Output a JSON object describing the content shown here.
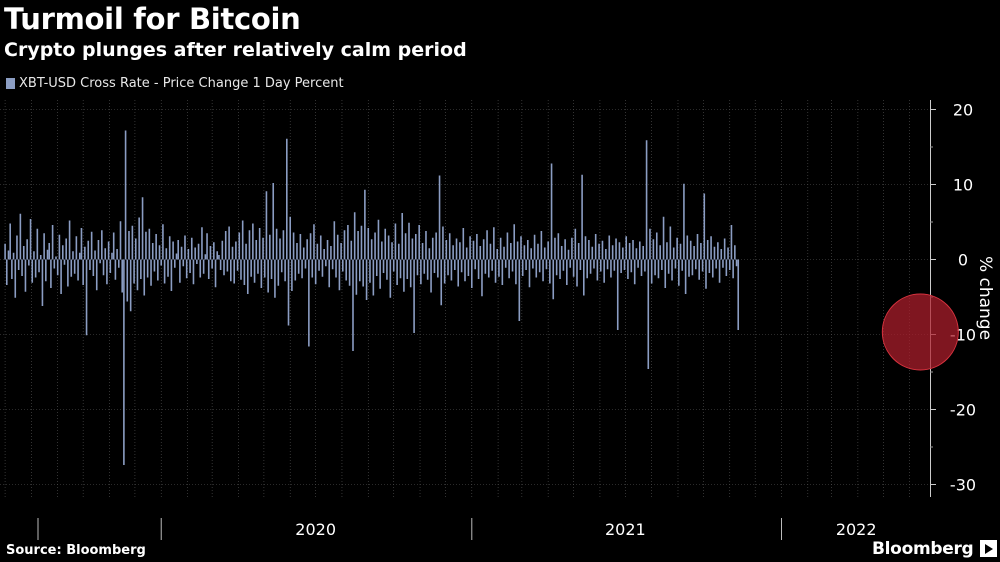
{
  "header": {
    "title": "Turmoil for Bitcoin",
    "subtitle": "Crypto plunges after relatively calm period"
  },
  "footer": {
    "source": "Source: Bloomberg",
    "brand": "Bloomberg"
  },
  "colors": {
    "background": "#000000",
    "bars": "#8b9dc3",
    "grid": "#555555",
    "highlight": "#b01e2c"
  },
  "chart_data": {
    "type": "bar",
    "title": "Turmoil for Bitcoin",
    "subtitle": "Crypto plunges after relatively calm period",
    "series": [
      {
        "name": "XBT-USD Cross Rate - Price Change 1 Day Percent",
        "description_of_sampling": "daily percent changes, 2019-07-01 to 2022-06-13, sampled every 2 days",
        "x_start": "2019-07-01",
        "x_step_days": 2,
        "values": [
          2.1,
          -3.4,
          1.2,
          4.8,
          -2.6,
          0.9,
          -5.1,
          3.2,
          -1.4,
          6.1,
          -2.2,
          1.8,
          -4.3,
          2.7,
          -0.8,
          5.4,
          -3.1,
          1.1,
          -2.4,
          4.1,
          -1.7,
          0.6,
          -6.2,
          3.5,
          -2.9,
          1.3,
          2.2,
          -3.8,
          4.6,
          -1.2,
          0.4,
          -2.1,
          3.3,
          -4.6,
          1.9,
          -0.7,
          2.8,
          -3.6,
          5.2,
          -2.3,
          1.1,
          -1.9,
          3.1,
          -2.8,
          0.9,
          4.2,
          -3.4,
          1.7,
          -10.1,
          2.5,
          -1.4,
          3.7,
          -2.2,
          1.2,
          -4.1,
          2.6,
          -0.5,
          3.9,
          -2.1,
          1.5,
          -3.3,
          2.4,
          -1.8,
          0.9,
          3.6,
          -2.7,
          1.4,
          -1.1,
          5.1,
          -4.4,
          -27.4,
          17.2,
          -5.6,
          3.8,
          -6.9,
          4.5,
          -3.2,
          2.8,
          -4.1,
          5.6,
          -2.6,
          8.3,
          -4.8,
          3.7,
          -2.4,
          4.1,
          -3.5,
          2.2,
          -1.6,
          3.4,
          -2.8,
          1.9,
          -0.8,
          4.7,
          -3.2,
          1.5,
          -2.3,
          3.1,
          -4.2,
          2.4,
          -1.1,
          0.8,
          2.6,
          -3.1,
          1.7,
          -0.9,
          3.2,
          -2.5,
          1.4,
          -1.8,
          2.9,
          -3.3,
          1.6,
          -0.6,
          2.1,
          -2.4,
          4.3,
          -1.9,
          0.7,
          3.5,
          -2.6,
          1.8,
          -1.2,
          2.3,
          -3.7,
          1.1,
          0.6,
          -1.4,
          2.5,
          -2.1,
          3.8,
          -1.6,
          4.4,
          -2.9,
          1.7,
          -3.2,
          2.4,
          -1.5,
          3.6,
          -2.7,
          5.2,
          -3.4,
          2.1,
          -4.6,
          3.9,
          -2.3,
          4.8,
          -3.1,
          2.6,
          -1.9,
          4.2,
          -3.8,
          2.9,
          -2.4,
          9.1,
          -4.4,
          3.3,
          -2.6,
          10.2,
          -5.1,
          4.1,
          -3.5,
          2.8,
          -1.7,
          3.9,
          -2.9,
          16.1,
          -8.8,
          5.7,
          -4.2,
          3.6,
          -2.8,
          2.2,
          -1.9,
          3.4,
          -2.5,
          1.6,
          -1.2,
          2.7,
          -11.6,
          3.5,
          -2.4,
          4.7,
          -3.3,
          2.1,
          -1.5,
          3.2,
          -2.3,
          1.4,
          -0.9,
          2.6,
          -3.7,
          1.8,
          -1.3,
          5.1,
          -2.4,
          3.3,
          -4.1,
          2.2,
          -1.6,
          3.9,
          -2.8,
          4.6,
          -3.5,
          2.5,
          -12.2,
          6.3,
          -4.7,
          3.8,
          -2.9,
          4.5,
          -3.6,
          9.3,
          -5.4,
          4.2,
          -3.1,
          2.7,
          -4.8,
          3.6,
          -2.2,
          5.3,
          -3.9,
          2.4,
          -1.8,
          4.1,
          -2.7,
          3.2,
          -5.1,
          2.3,
          -1.6,
          4.8,
          -3.4,
          2.1,
          -2.5,
          6.2,
          -4.3,
          3.5,
          -2.6,
          4.9,
          -3.7,
          2.8,
          -9.8,
          3.4,
          -2.1,
          4.6,
          -3.3,
          2.2,
          -1.9,
          3.8,
          -2.7,
          1.5,
          -4.4,
          2.9,
          -1.8,
          3.6,
          -2.4,
          11.2,
          -6.1,
          4.4,
          -3.2,
          2.6,
          -2.1,
          3.5,
          -2.8,
          1.9,
          -1.4,
          2.8,
          -3.6,
          2.3,
          -1.7,
          4.2,
          -2.9,
          1.6,
          -2.2,
          3.1,
          -3.8,
          2.5,
          -1.3,
          3.4,
          -2.6,
          1.8,
          -4.9,
          2.7,
          -1.9,
          3.9,
          -2.4,
          2.1,
          -1.5,
          4.3,
          -3.1,
          1.4,
          -2.3,
          2.9,
          -3.4,
          1.7,
          -1.1,
          3.6,
          -2.5,
          2.2,
          -1.6,
          4.7,
          -3.3,
          2.4,
          -8.2,
          3.1,
          -2.2,
          1.9,
          -1.4,
          2.6,
          -3.7,
          1.5,
          -1.2,
          3.3,
          -2.4,
          2.1,
          -1.7,
          3.8,
          -2.9,
          1.6,
          -1.3,
          2.4,
          -3.2,
          12.8,
          -5.3,
          2.9,
          -2.1,
          3.5,
          -2.6,
          1.8,
          -1.5,
          2.7,
          -3.4,
          1.3,
          -1.1,
          2.9,
          -2.3,
          4.1,
          -3.6,
          2.2,
          -1.4,
          11.3,
          -4.8,
          3.1,
          -2.5,
          2.6,
          -1.9,
          1.7,
          -1.2,
          3.4,
          -2.8,
          2.1,
          -1.6,
          2.5,
          -3.1,
          1.4,
          -1.3,
          3.2,
          -2.4,
          1.9,
          -1.5,
          2.8,
          -9.4,
          2.3,
          -1.8,
          1.6,
          -1.4,
          3.1,
          -2.6,
          2.2,
          -1.7,
          2.6,
          -3.3,
          1.5,
          -1.1,
          2.4,
          -2.2,
          1.8,
          -1.6,
          15.9,
          -14.6,
          4.1,
          -3.2,
          2.7,
          -2.1,
          3.6,
          -2.5,
          1.9,
          -1.4,
          5.7,
          -3.8,
          2.3,
          -1.9,
          4.4,
          -2.8,
          1.6,
          -1.2,
          2.9,
          -3.5,
          2.1,
          -1.5,
          10.1,
          -4.6,
          3.2,
          -2.3,
          2.5,
          -2.1,
          1.8,
          -1.3,
          3.4,
          -2.7,
          2.2,
          -1.6,
          8.8,
          -3.9,
          2.6,
          -1.8,
          3.1,
          -2.4,
          1.7,
          -1.2,
          2.3,
          -3.1,
          1.4,
          -1.1,
          2.8,
          -2.2,
          1.6,
          -1.4,
          4.6,
          -2.5,
          1.9,
          -0.9,
          -9.4
        ]
      }
    ],
    "xlabel": "",
    "ylabel": "% change",
    "ylim": [
      -30,
      22
    ],
    "yticks": [
      20,
      10,
      0,
      -10,
      -20,
      -30
    ],
    "xtick_labels": [
      "2020",
      "2021",
      "2022"
    ],
    "year_boundaries": [
      "2020-01-01",
      "2021-01-01",
      "2022-01-01"
    ],
    "x_range": [
      "2019-06-25",
      "2022-06-25"
    ],
    "grid": true,
    "highlight": {
      "x": "2022-06-13",
      "y": -9.4
    }
  }
}
